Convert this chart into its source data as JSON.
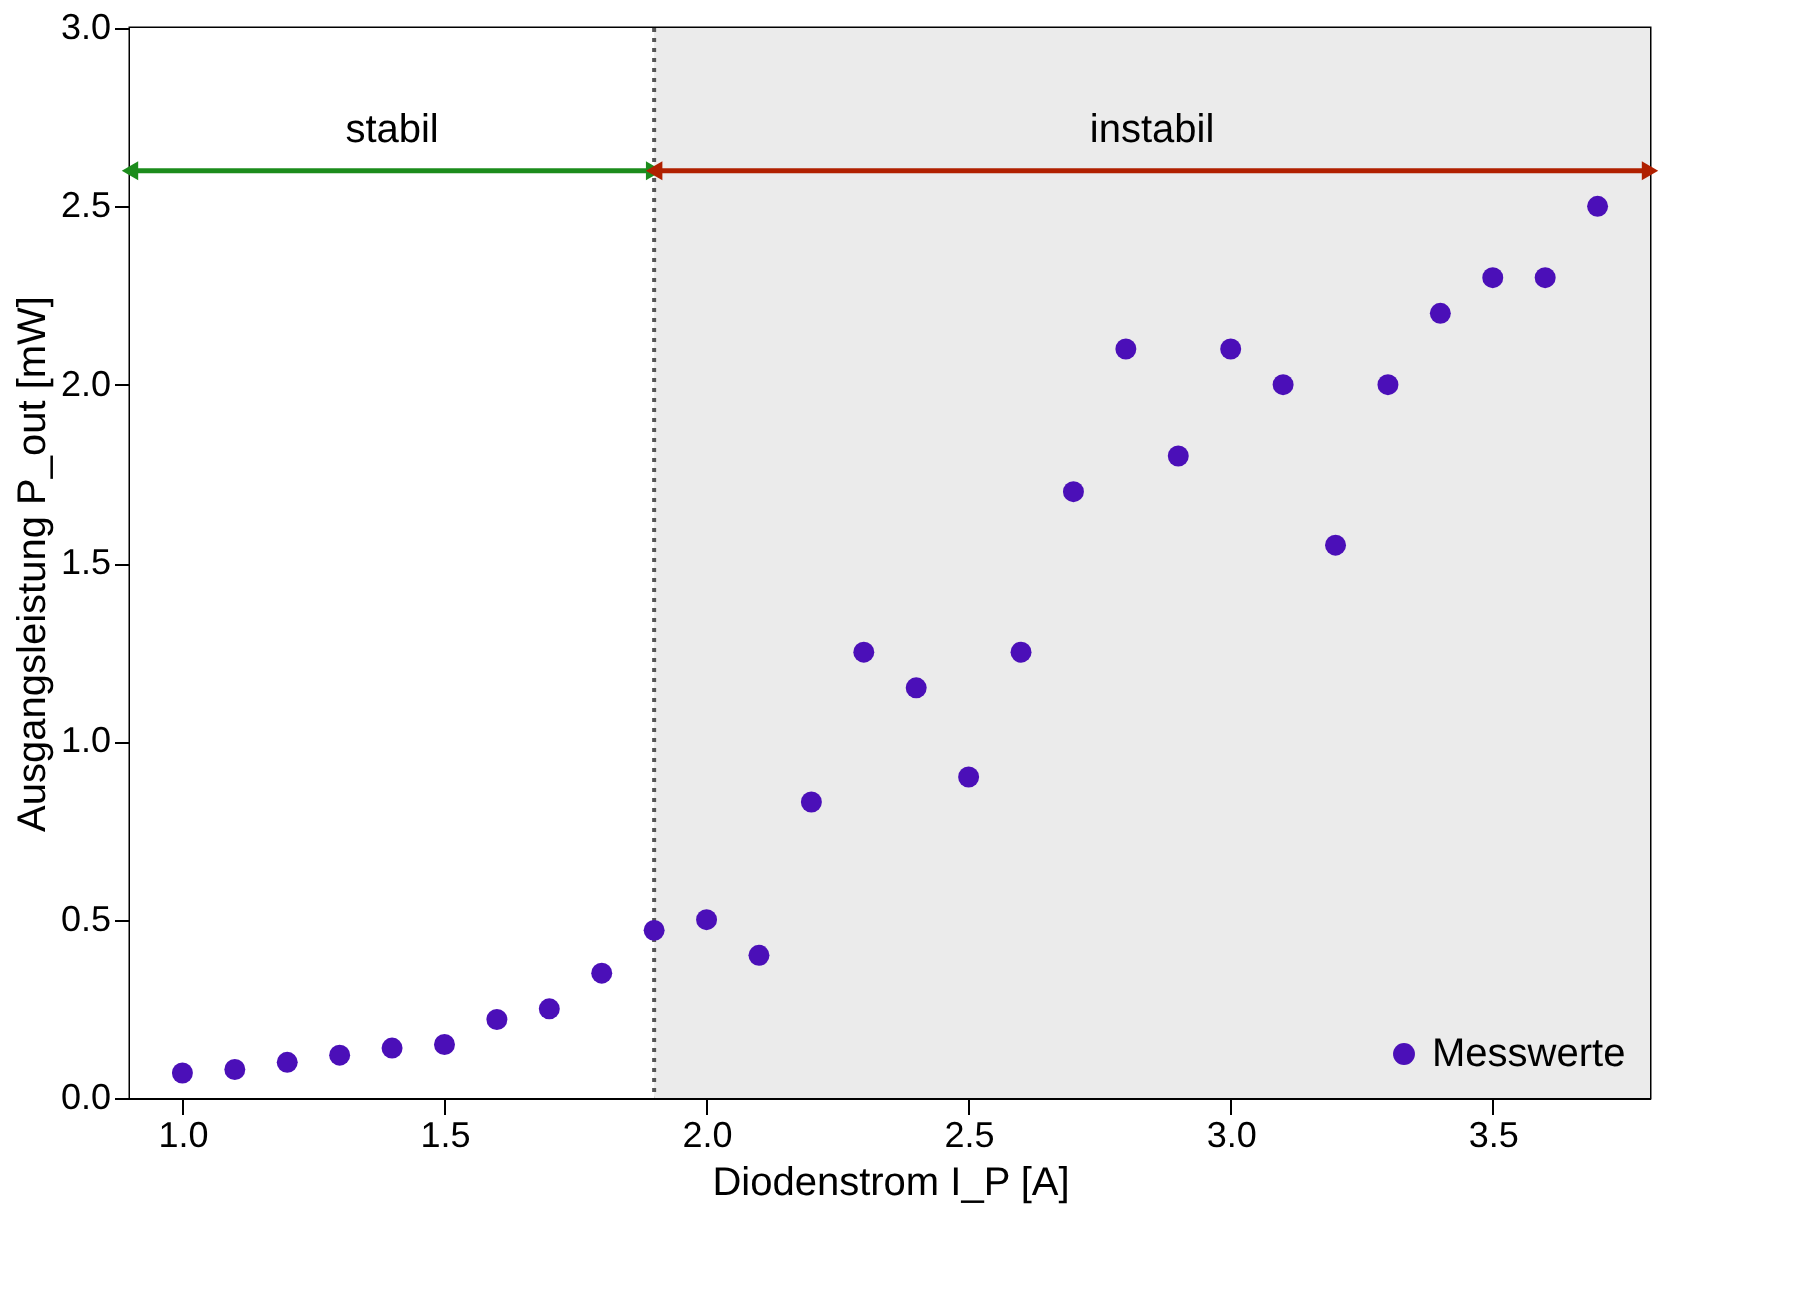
{
  "chart_data": {
    "type": "scatter",
    "xlabel": "Diodenstrom I_P [A]",
    "ylabel": "Ausgangsleistung P_out [mW]",
    "x": [
      1.0,
      1.1,
      1.2,
      1.3,
      1.4,
      1.5,
      1.6,
      1.7,
      1.8,
      1.9,
      2.0,
      2.1,
      2.2,
      2.3,
      2.4,
      2.5,
      2.6,
      2.7,
      2.8,
      2.9,
      3.0,
      3.1,
      3.2,
      3.3,
      3.4,
      3.5,
      3.6,
      3.7
    ],
    "series": [
      {
        "name": "Messwerte",
        "color": "#4b0fb8",
        "values": [
          0.07,
          0.08,
          0.1,
          0.12,
          0.14,
          0.15,
          0.22,
          0.25,
          0.35,
          0.47,
          0.5,
          0.4,
          0.83,
          1.25,
          1.15,
          0.9,
          1.25,
          1.7,
          2.1,
          1.8,
          2.1,
          2.0,
          1.55,
          2.0,
          2.2,
          2.3,
          2.3,
          2.5
        ]
      },
      {
        "type": "line",
        "marker": "triangle",
        "color": "#1c8c1c",
        "x": [
          0.9,
          1.9
        ],
        "values": [
          2.6,
          2.6
        ]
      },
      {
        "type": "line",
        "marker": "triangle",
        "color": "#b02000",
        "x": [
          1.9,
          3.8
        ],
        "values": [
          2.6,
          2.6
        ]
      }
    ],
    "xlim": [
      0.9,
      3.8
    ],
    "ylim": [
      0,
      3
    ],
    "xticks": [
      {
        "value": 1.0,
        "label": "1.0"
      },
      {
        "value": 1.5,
        "label": "1.5"
      },
      {
        "value": 2.0,
        "label": "2.0"
      },
      {
        "value": 2.5,
        "label": "2.5"
      },
      {
        "value": 3.0,
        "label": "3.0"
      },
      {
        "value": 3.5,
        "label": "3.5"
      }
    ],
    "yticks": [
      {
        "value": 0,
        "label": "0.0"
      },
      {
        "value": 0.5,
        "label": "0.5"
      },
      {
        "value": 1.0,
        "label": "1.0"
      },
      {
        "value": 1.5,
        "label": "1.5"
      },
      {
        "value": 2.0,
        "label": "2.0"
      },
      {
        "value": 2.5,
        "label": "2.5"
      },
      {
        "value": 3.0,
        "label": "3.0"
      }
    ],
    "bands": [
      {
        "axis": "x",
        "from": 0.9,
        "to": 1.9,
        "label": "stabil",
        "color": "#ffffff"
      },
      {
        "axis": "x",
        "from": 1.9,
        "to": 3.8,
        "label": "instabil",
        "color": "#ebebeb"
      }
    ],
    "ref_lines": [
      {
        "axis": "x",
        "value": 1.9,
        "line_style": "dotted",
        "color": "#555555"
      }
    ],
    "marker": "circle",
    "grid": false,
    "legend": "bottom right"
  }
}
